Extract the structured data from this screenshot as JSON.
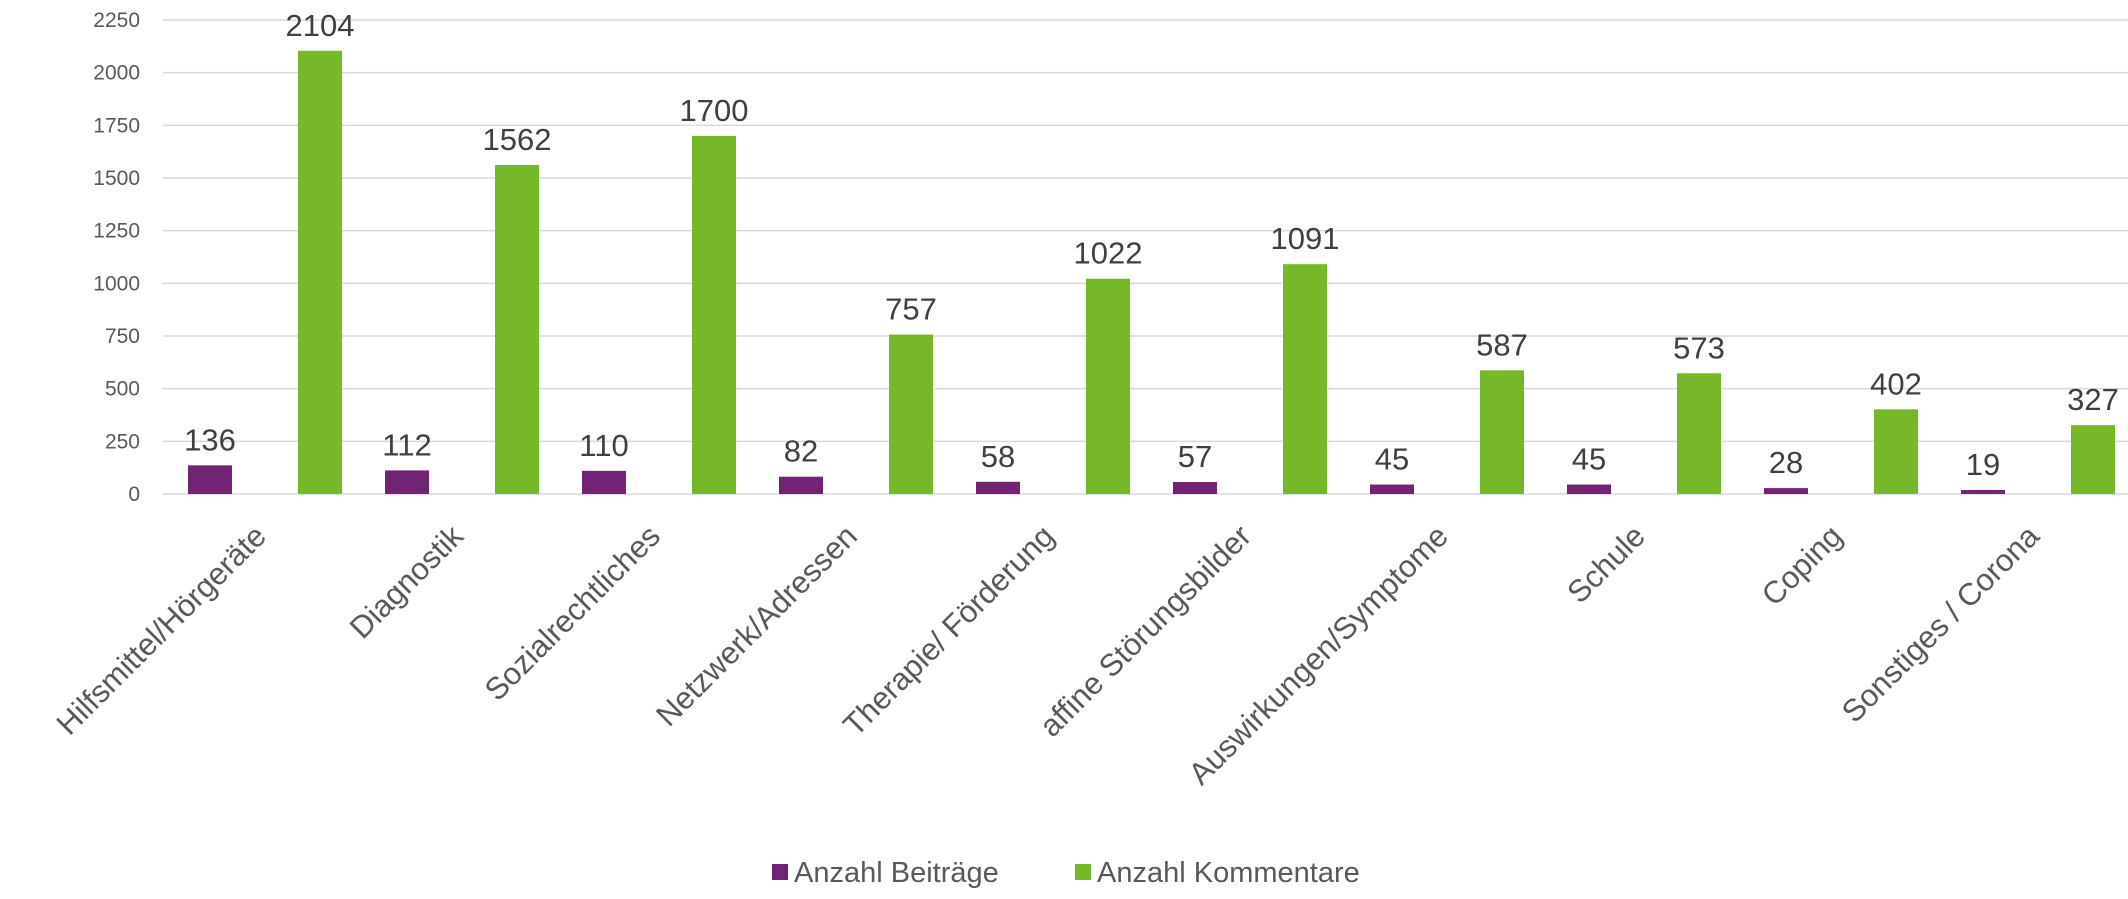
{
  "chart_data": {
    "type": "bar",
    "title": "",
    "xlabel": "",
    "ylabel": "",
    "ylim": [
      0,
      2250
    ],
    "yticks": [
      0,
      250,
      500,
      750,
      1000,
      1250,
      1500,
      1750,
      2000,
      2250
    ],
    "grid": true,
    "legend_position": "bottom",
    "categories": [
      "Hilfsmittel/Hörgeräte",
      "Diagnostik",
      "Sozialrechtliches",
      "Netzwerk/Adressen",
      "Therapie/ Förderung",
      "affine Störungsbilder",
      "Auswirkungen/Symptome",
      "Schule",
      "Coping",
      "Sonstiges / Corona"
    ],
    "series": [
      {
        "name": "Anzahl Beiträge",
        "color": "#722474",
        "values": [
          136,
          112,
          110,
          82,
          58,
          57,
          45,
          45,
          28,
          19
        ]
      },
      {
        "name": "Anzahl Kommentare",
        "color": "#76b82a",
        "values": [
          2104,
          1562,
          1700,
          757,
          1022,
          1091,
          587,
          573,
          402,
          327
        ]
      }
    ]
  }
}
